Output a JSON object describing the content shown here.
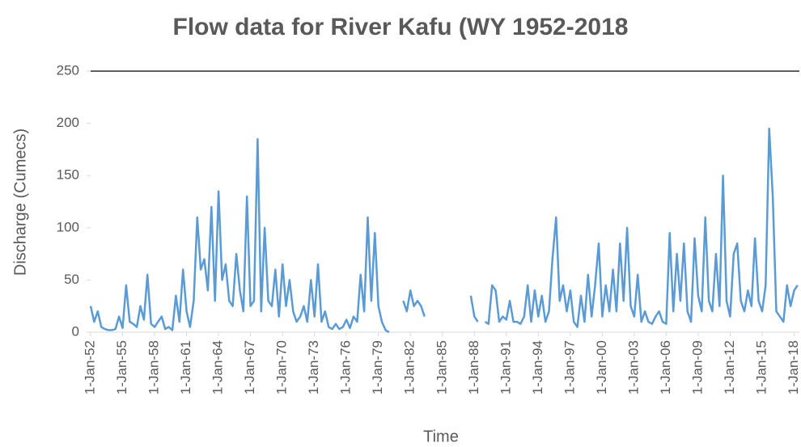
{
  "chart_data": {
    "type": "line",
    "title": "Flow data for  River  Kafu (WY 1952-2018",
    "x_label": "Time",
    "y_label": "Discharge (Cumecs)",
    "x": [
      "1952-01-01",
      "1952-05-01",
      "1952-09-01",
      "1953-01-01",
      "1953-05-01",
      "1953-09-01",
      "1954-01-01",
      "1954-05-01",
      "1954-09-01",
      "1955-01-01",
      "1955-05-01",
      "1955-09-01",
      "1956-01-01",
      "1956-05-01",
      "1956-09-01",
      "1957-01-01",
      "1957-05-01",
      "1957-09-01",
      "1958-01-01",
      "1958-05-01",
      "1958-09-01",
      "1959-01-01",
      "1959-05-01",
      "1959-09-01",
      "1960-01-01",
      "1960-05-01",
      "1960-09-01",
      "1961-01-01",
      "1961-05-01",
      "1961-09-01",
      "1962-01-01",
      "1962-05-01",
      "1962-09-01",
      "1963-01-01",
      "1963-05-01",
      "1963-09-01",
      "1964-01-01",
      "1964-05-01",
      "1964-09-01",
      "1965-01-01",
      "1965-05-01",
      "1965-09-01",
      "1966-01-01",
      "1966-05-01",
      "1966-09-01",
      "1967-01-01",
      "1967-05-01",
      "1967-09-01",
      "1968-01-01",
      "1968-05-01",
      "1968-09-01",
      "1969-01-01",
      "1969-05-01",
      "1969-09-01",
      "1970-01-01",
      "1970-05-01",
      "1970-09-01",
      "1971-01-01",
      "1971-05-01",
      "1971-09-01",
      "1972-01-01",
      "1972-05-01",
      "1972-09-01",
      "1973-01-01",
      "1973-05-01",
      "1973-09-01",
      "1974-01-01",
      "1974-05-01",
      "1974-09-01",
      "1975-01-01",
      "1975-05-01",
      "1975-09-01",
      "1976-01-01",
      "1976-05-01",
      "1976-09-01",
      "1977-01-01",
      "1977-05-01",
      "1977-09-01",
      "1978-01-01",
      "1978-05-01",
      "1978-09-01",
      "1979-01-01",
      "1979-05-01",
      "1979-09-01",
      "1980-01-01",
      "1980-05-01",
      "1980-09-01",
      "1981-01-01",
      "1981-05-01",
      "1981-09-01",
      "1982-01-01",
      "1982-05-01",
      "1982-09-01",
      "1983-01-01",
      "1983-05-01",
      "1983-09-01",
      "1984-01-01",
      "1984-05-01",
      "1984-09-01",
      "1985-01-01",
      "1985-05-01",
      "1985-09-01",
      "1986-01-01",
      "1986-05-01",
      "1986-09-01",
      "1987-01-01",
      "1987-05-01",
      "1987-09-01",
      "1988-01-01",
      "1988-05-01",
      "1988-09-01",
      "1989-01-01",
      "1989-05-01",
      "1989-09-01",
      "1990-01-01",
      "1990-05-01",
      "1990-09-01",
      "1991-01-01",
      "1991-05-01",
      "1991-09-01",
      "1992-01-01",
      "1992-05-01",
      "1992-09-01",
      "1993-01-01",
      "1993-05-01",
      "1993-09-01",
      "1994-01-01",
      "1994-05-01",
      "1994-09-01",
      "1995-01-01",
      "1995-05-01",
      "1995-09-01",
      "1996-01-01",
      "1996-05-01",
      "1996-09-01",
      "1997-01-01",
      "1997-05-01",
      "1997-09-01",
      "1998-01-01",
      "1998-05-01",
      "1998-09-01",
      "1999-01-01",
      "1999-05-01",
      "1999-09-01",
      "2000-01-01",
      "2000-05-01",
      "2000-09-01",
      "2001-01-01",
      "2001-05-01",
      "2001-09-01",
      "2002-01-01",
      "2002-05-01",
      "2002-09-01",
      "2003-01-01",
      "2003-05-01",
      "2003-09-01",
      "2004-01-01",
      "2004-05-01",
      "2004-09-01",
      "2005-01-01",
      "2005-05-01",
      "2005-09-01",
      "2006-01-01",
      "2006-05-01",
      "2006-09-01",
      "2007-01-01",
      "2007-05-01",
      "2007-09-01",
      "2008-01-01",
      "2008-05-01",
      "2008-09-01",
      "2009-01-01",
      "2009-05-01",
      "2009-09-01",
      "2010-01-01",
      "2010-05-01",
      "2010-09-01",
      "2011-01-01",
      "2011-05-01",
      "2011-09-01",
      "2012-01-01",
      "2012-05-01",
      "2012-09-01",
      "2013-01-01",
      "2013-05-01",
      "2013-09-01",
      "2014-01-01",
      "2014-05-01",
      "2014-09-01",
      "2015-01-01",
      "2015-05-01",
      "2015-09-01",
      "2016-01-01",
      "2016-05-01",
      "2016-09-01",
      "2017-01-01",
      "2017-05-01",
      "2017-09-01",
      "2018-01-01",
      "2018-05-01"
    ],
    "series": [
      {
        "name": "Discharge",
        "color": "#5b9bd5",
        "values": [
          25,
          10,
          20,
          5,
          3,
          2,
          2,
          3,
          15,
          4,
          45,
          10,
          8,
          5,
          25,
          12,
          55,
          8,
          5,
          10,
          15,
          3,
          5,
          2,
          35,
          10,
          60,
          20,
          5,
          30,
          110,
          60,
          70,
          40,
          120,
          30,
          135,
          50,
          65,
          30,
          25,
          75,
          40,
          20,
          130,
          25,
          30,
          185,
          20,
          100,
          30,
          25,
          60,
          15,
          65,
          25,
          50,
          20,
          10,
          15,
          25,
          10,
          50,
          15,
          65,
          10,
          20,
          5,
          3,
          8,
          3,
          5,
          12,
          4,
          15,
          10,
          55,
          20,
          110,
          30,
          95,
          25,
          10,
          2,
          0,
          null,
          null,
          null,
          30,
          20,
          40,
          25,
          30,
          25,
          15,
          null,
          null,
          null,
          null,
          null,
          null,
          null,
          null,
          null,
          null,
          null,
          null,
          35,
          15,
          10,
          null,
          10,
          8,
          45,
          40,
          10,
          15,
          12,
          30,
          10,
          10,
          8,
          15,
          45,
          10,
          40,
          15,
          35,
          10,
          20,
          70,
          110,
          30,
          45,
          20,
          40,
          10,
          5,
          35,
          10,
          55,
          15,
          45,
          85,
          15,
          45,
          20,
          60,
          20,
          85,
          30,
          100,
          25,
          15,
          55,
          10,
          20,
          10,
          8,
          15,
          20,
          10,
          8,
          95,
          20,
          75,
          30,
          85,
          20,
          10,
          90,
          35,
          20,
          110,
          30,
          20,
          75,
          25,
          150,
          30,
          15,
          75,
          85,
          30,
          20,
          40,
          25,
          90,
          30,
          20,
          45,
          195,
          130,
          20,
          15,
          10,
          45,
          25,
          40,
          45
        ]
      }
    ],
    "xlim": [
      "1952-01-01",
      "2018-06-30"
    ],
    "xticks": [
      {
        "value": "1952-01-01",
        "label": "1-Jan-52"
      },
      {
        "value": "1955-01-01",
        "label": "1-Jan-55"
      },
      {
        "value": "1958-01-01",
        "label": "1-Jan-58"
      },
      {
        "value": "1961-01-01",
        "label": "1-Jan-61"
      },
      {
        "value": "1964-01-01",
        "label": "1-Jan-64"
      },
      {
        "value": "1967-01-01",
        "label": "1-Jan-67"
      },
      {
        "value": "1970-01-01",
        "label": "1-Jan-70"
      },
      {
        "value": "1973-01-01",
        "label": "1-Jan-73"
      },
      {
        "value": "1976-01-01",
        "label": "1-Jan-76"
      },
      {
        "value": "1979-01-01",
        "label": "1-Jan-79"
      },
      {
        "value": "1982-01-01",
        "label": "1-Jan-82"
      },
      {
        "value": "1985-01-01",
        "label": "1-Jan-85"
      },
      {
        "value": "1988-01-01",
        "label": "1-Jan-88"
      },
      {
        "value": "1991-01-01",
        "label": "1-Jan-91"
      },
      {
        "value": "1994-01-01",
        "label": "1-Jan-94"
      },
      {
        "value": "1997-01-01",
        "label": "1-Jan-97"
      },
      {
        "value": "2000-01-01",
        "label": "1-Jan-00"
      },
      {
        "value": "2003-01-01",
        "label": "1-Jan-03"
      },
      {
        "value": "2006-01-01",
        "label": "1-Jan-06"
      },
      {
        "value": "2009-01-01",
        "label": "1-Jan-09"
      },
      {
        "value": "2012-01-01",
        "label": "1-Jan-12"
      },
      {
        "value": "2015-01-01",
        "label": "1-Jan-15"
      },
      {
        "value": "2018-01-01",
        "label": "1-Jan-18"
      }
    ],
    "ylim": [
      0,
      250
    ],
    "yticks": [
      0,
      50,
      100,
      150,
      200,
      250
    ],
    "grid": false
  }
}
